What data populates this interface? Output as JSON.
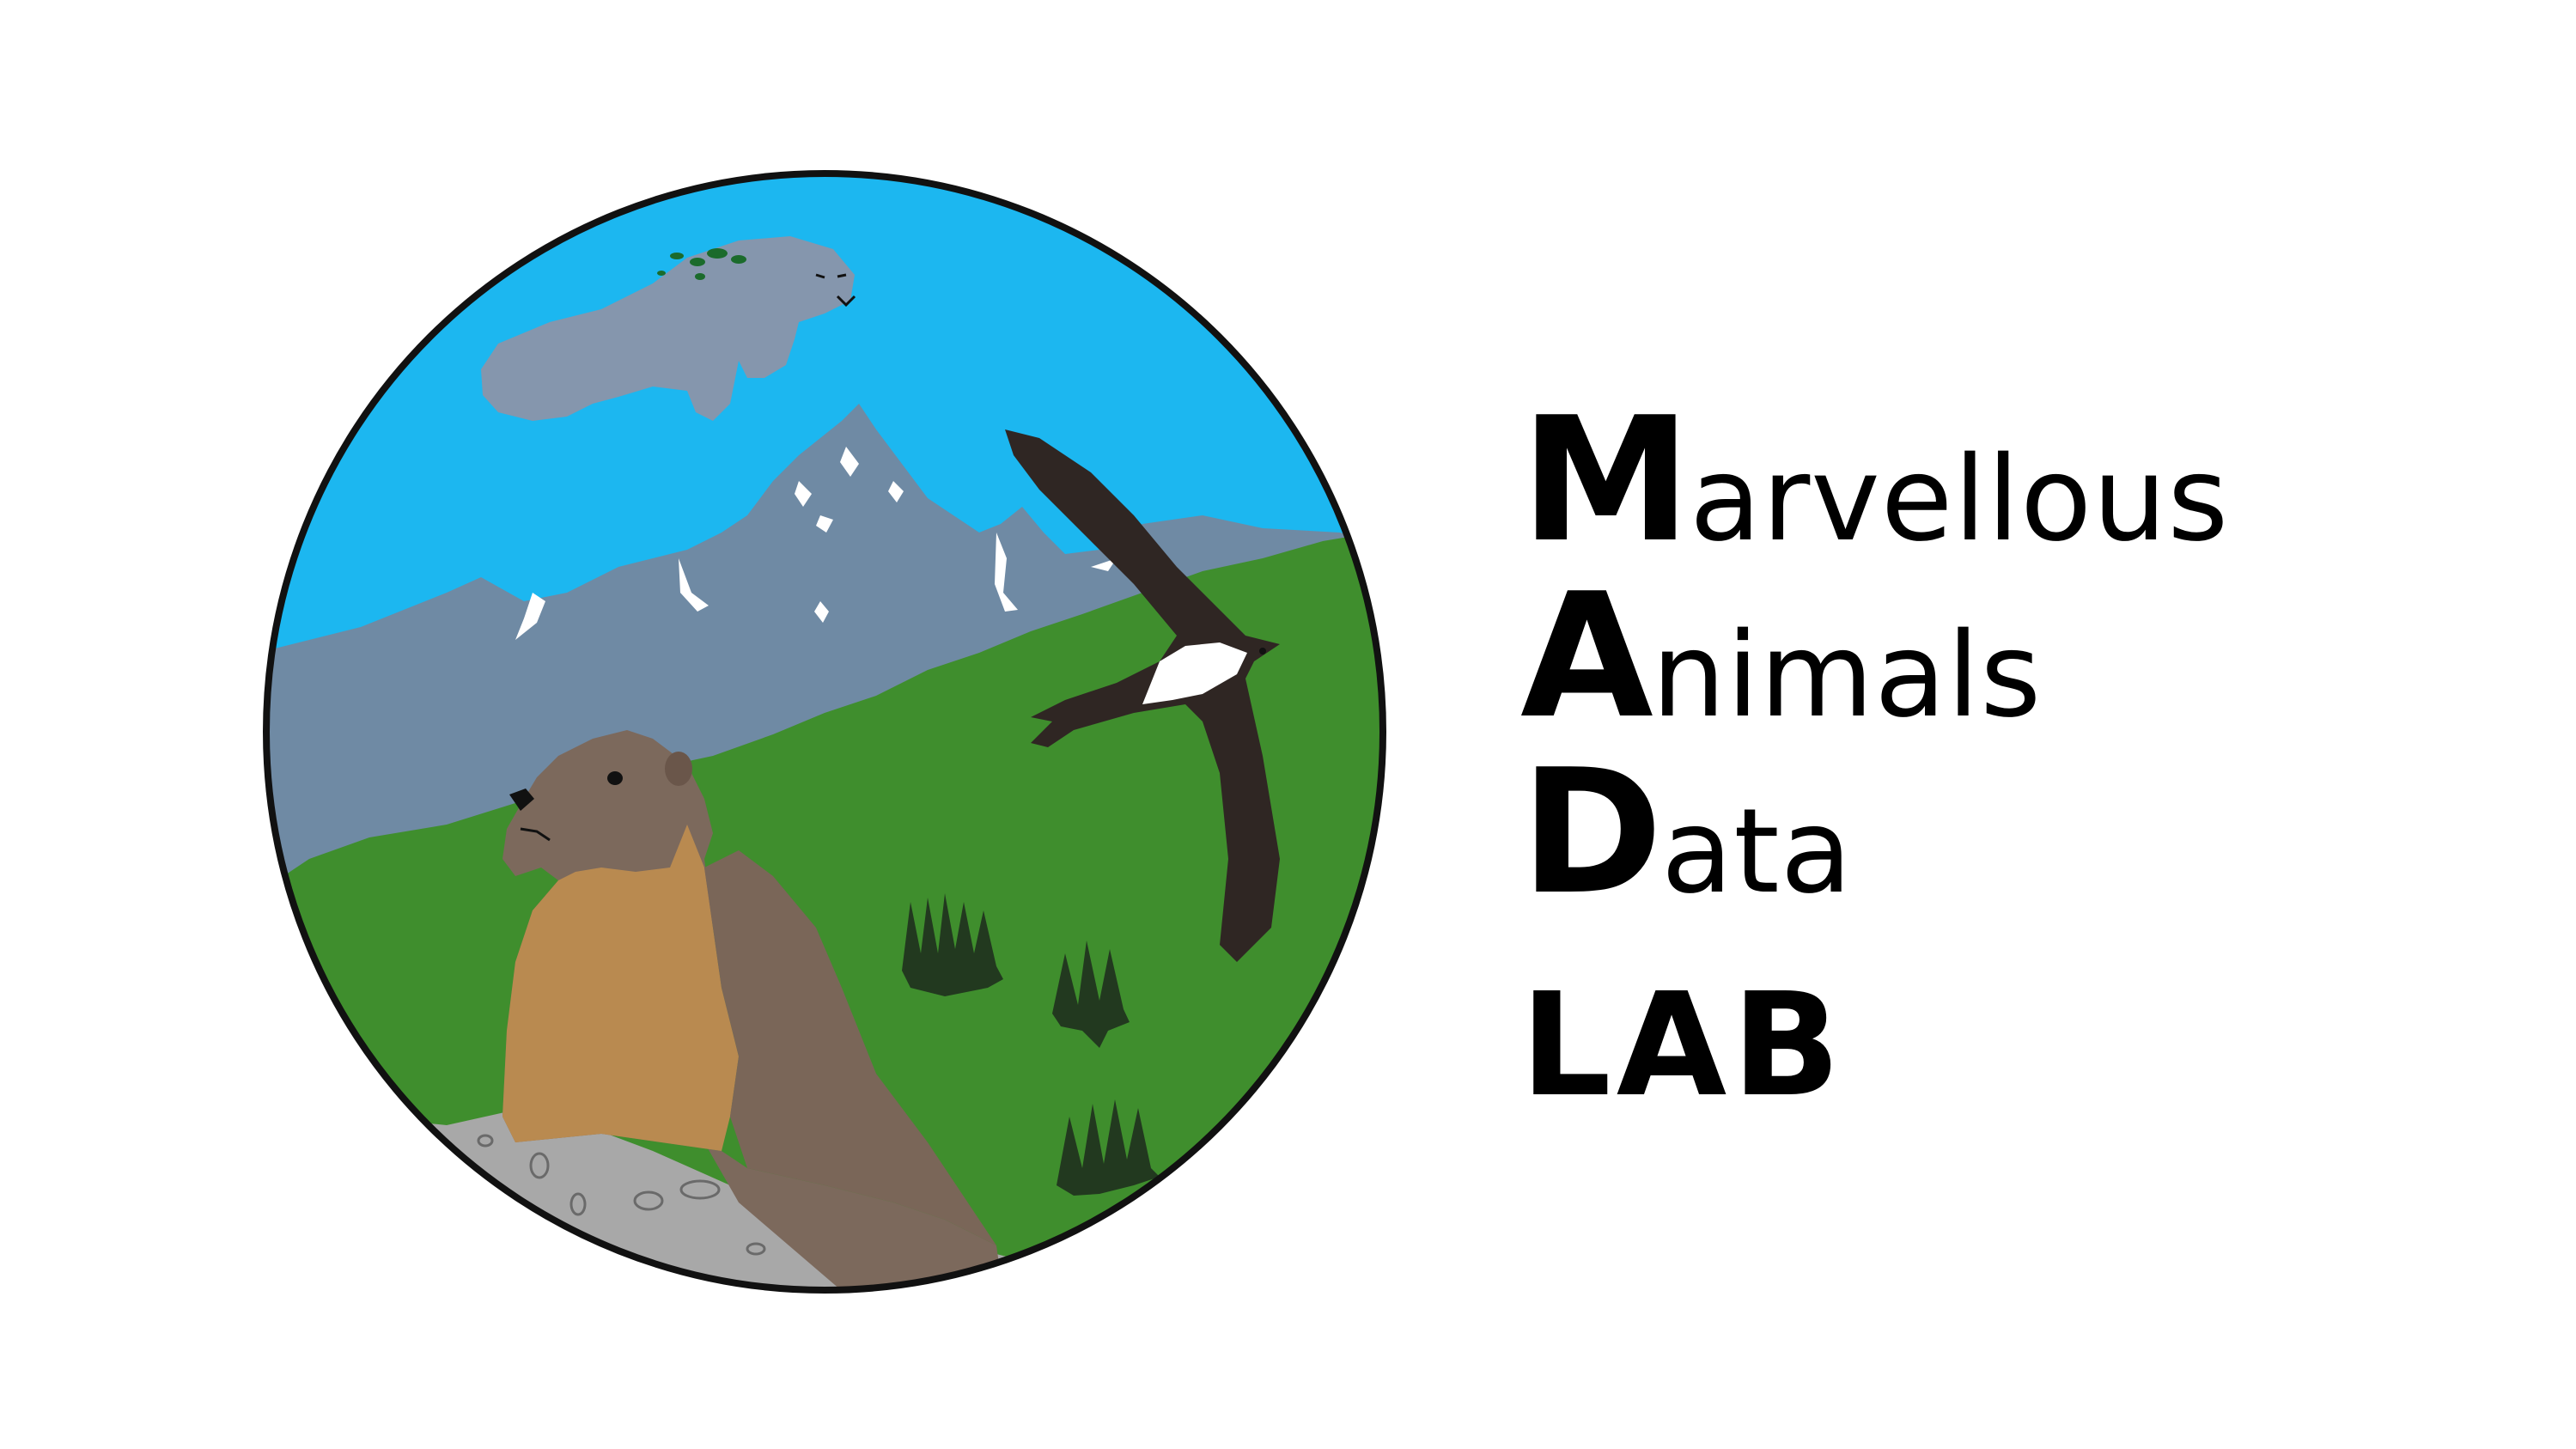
{
  "logo": {
    "words": [
      {
        "initial": "M",
        "rest": "arvellous"
      },
      {
        "initial": "A",
        "rest": "nimals"
      },
      {
        "initial": "D",
        "rest": "ata"
      }
    ],
    "suffix": "LAB"
  },
  "illustration": {
    "subjects": [
      "manatee",
      "mountains",
      "swift-bird",
      "marmot",
      "trees",
      "rock"
    ],
    "colors": {
      "sky": "#1cb7f0",
      "mountains": "#6f8aa4",
      "snow": "#ffffff",
      "grass": "#3f8e2d",
      "manatee": "#8596ad",
      "marmot_fur": "#7c695c",
      "marmot_belly": "#b98a50",
      "bird": "#2f2623",
      "trees": "#22391f",
      "rock": "#a8a8a8",
      "border": "#111111"
    }
  }
}
